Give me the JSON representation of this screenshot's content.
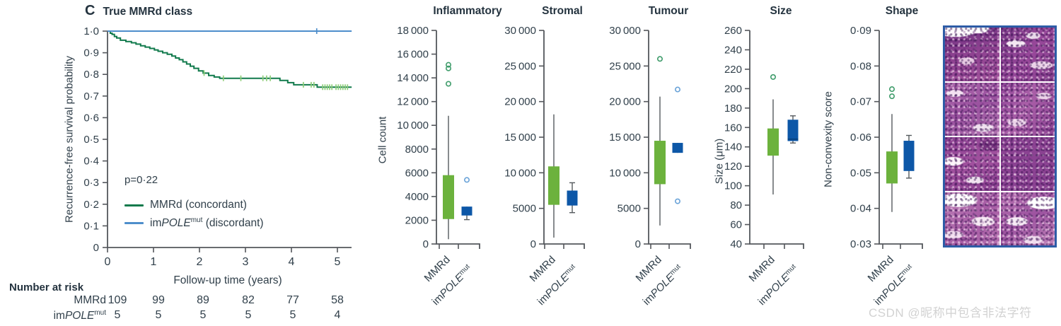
{
  "watermark": "CSDN @昵称中包含非法字符",
  "colors": {
    "green_line": "#117a4c",
    "green_censor": "#8fce7a",
    "green_box": "#6cb23d",
    "green_outlier": "#3f9c6b",
    "blue_line": "#4e8ecb",
    "blue_box": "#0d57a7",
    "blue_outlier": "#6aa3d8",
    "axis": "#54575c",
    "text": "#31404b",
    "heading": "#24333f",
    "histology_border": "#2d5ca6",
    "watermark_gray": "#d2d2d2"
  },
  "km": {
    "panel_letter": "C",
    "title": "True MMRd class",
    "ylabel": "Recurrence-free survival probability",
    "xlabel": "Follow-up time (years)",
    "p_value": "p=0·22",
    "yticks": [
      "1·0",
      "0·9",
      "0·8",
      "0·7",
      "0·6",
      "0·5",
      "0·4",
      "0·3",
      "0·2",
      "0·1",
      "0"
    ],
    "xticks": [
      "0",
      "1",
      "2",
      "3",
      "4",
      "5"
    ],
    "legend": [
      {
        "color_key": "green_line",
        "parts": [
          {
            "t": "MMRd (concordant)"
          }
        ]
      },
      {
        "color_key": "blue_line",
        "parts": [
          {
            "t": "im"
          },
          {
            "t": "POLE",
            "style": "italic"
          },
          {
            "t": "mut",
            "style": "sup"
          },
          {
            "t": " (discordant)"
          }
        ]
      }
    ]
  },
  "chart_data": [
    {
      "type": "line",
      "subtype": "kaplan-meier",
      "title": "True MMRd class",
      "xlabel": "Follow-up time (years)",
      "ylabel": "Recurrence-free survival probability",
      "xlim": [
        0,
        5.35
      ],
      "ylim": [
        0,
        1.0
      ],
      "annotation": "p=0·22",
      "series": [
        {
          "name": "MMRd (concordant)",
          "color_key": "green_line",
          "steps": [
            [
              0,
              1.0
            ],
            [
              0.06,
              0.99
            ],
            [
              0.1,
              0.985
            ],
            [
              0.15,
              0.975
            ],
            [
              0.2,
              0.968
            ],
            [
              0.28,
              0.958
            ],
            [
              0.4,
              0.952
            ],
            [
              0.52,
              0.946
            ],
            [
              0.62,
              0.94
            ],
            [
              0.72,
              0.932
            ],
            [
              0.82,
              0.926
            ],
            [
              0.92,
              0.92
            ],
            [
              1.02,
              0.913
            ],
            [
              1.1,
              0.907
            ],
            [
              1.2,
              0.9
            ],
            [
              1.3,
              0.893
            ],
            [
              1.4,
              0.885
            ],
            [
              1.48,
              0.876
            ],
            [
              1.56,
              0.868
            ],
            [
              1.64,
              0.858
            ],
            [
              1.72,
              0.848
            ],
            [
              1.8,
              0.838
            ],
            [
              1.88,
              0.828
            ],
            [
              1.98,
              0.816
            ],
            [
              2.08,
              0.806
            ],
            [
              2.2,
              0.795
            ],
            [
              2.32,
              0.788
            ],
            [
              2.44,
              0.782
            ],
            [
              3.75,
              0.772
            ],
            [
              3.92,
              0.762
            ],
            [
              4.05,
              0.752
            ],
            [
              4.56,
              0.741
            ],
            [
              5.31,
              0.741
            ]
          ],
          "censor": [
            [
              2.1,
              0.806
            ],
            [
              2.52,
              0.782
            ],
            [
              2.9,
              0.782
            ],
            [
              3.38,
              0.782
            ],
            [
              3.46,
              0.782
            ],
            [
              3.54,
              0.782
            ],
            [
              4.26,
              0.752
            ],
            [
              4.43,
              0.752
            ],
            [
              4.49,
              0.752
            ],
            [
              4.68,
              0.741
            ],
            [
              4.73,
              0.741
            ],
            [
              4.78,
              0.741
            ],
            [
              4.83,
              0.741
            ],
            [
              4.88,
              0.741
            ],
            [
              4.97,
              0.741
            ],
            [
              5.02,
              0.741
            ],
            [
              5.07,
              0.741
            ],
            [
              5.12,
              0.741
            ],
            [
              5.17,
              0.741
            ],
            [
              5.22,
              0.741
            ]
          ]
        },
        {
          "name": "imPOLEmut (discordant)",
          "color_key": "blue_line",
          "steps": [
            [
              0,
              1.0
            ],
            [
              5.31,
              1.0
            ]
          ],
          "censor": [
            [
              4.55,
              1.0
            ]
          ]
        }
      ],
      "number_at_risk": {
        "header": "Number at risk",
        "times": [
          "0",
          "1",
          "2",
          "3",
          "4",
          "5"
        ],
        "rows": [
          {
            "label_parts": [
              {
                "t": "MMRd"
              }
            ],
            "values": [
              "109",
              "99",
              "89",
              "82",
              "77",
              "58"
            ]
          },
          {
            "label_parts": [
              {
                "t": "im"
              },
              {
                "t": "POLE",
                "style": "italic"
              },
              {
                "t": "mut",
                "style": "sup"
              }
            ],
            "values": [
              "5",
              "5",
              "5",
              "5",
              "5",
              "4"
            ]
          }
        ]
      }
    },
    {
      "type": "boxplot",
      "categories": [
        {
          "parts": [
            {
              "t": "MMRd"
            }
          ]
        },
        {
          "parts": [
            {
              "t": "im"
            },
            {
              "t": "POLE",
              "style": "italic"
            },
            {
              "t": "mut",
              "style": "sup"
            }
          ]
        }
      ],
      "panels": [
        {
          "title": "Inflammatory",
          "ylabel": "Cell count",
          "ylim": [
            0,
            18000
          ],
          "ytick_values": [
            18000,
            16000,
            14000,
            12000,
            10000,
            8000,
            6000,
            4000,
            2000,
            0
          ],
          "ytick_labels": [
            "18 000",
            "16 000",
            "14 000",
            "12 000",
            "10 000",
            "8000",
            "6000",
            "4000",
            "2000",
            "0"
          ],
          "groups": [
            {
              "name": "MMRd",
              "whislo": 400,
              "q1": 2100,
              "median": null,
              "q3": 5800,
              "whishi": 10800,
              "outliers": [
                13500,
                14800,
                15100
              ]
            },
            {
              "name": "imPOLEmut",
              "whislo": 2050,
              "q1": 2400,
              "median": null,
              "q3": 3150,
              "whishi": 3150,
              "outliers": [
                5400
              ]
            }
          ]
        },
        {
          "title": "Stromal",
          "ylabel": null,
          "ylim": [
            0,
            30000
          ],
          "ytick_values": [
            30000,
            25000,
            20000,
            15000,
            10000,
            5000,
            0
          ],
          "ytick_labels": [
            "30 000",
            "25 000",
            "20 000",
            "15 000",
            "10 000",
            "5000",
            "0"
          ],
          "groups": [
            {
              "name": "MMRd",
              "whislo": 900,
              "q1": 5500,
              "median": null,
              "q3": 10900,
              "whishi": 18200,
              "outliers": []
            },
            {
              "name": "imPOLEmut",
              "whislo": 4400,
              "q1": 5400,
              "median": null,
              "q3": 7500,
              "whishi": 8600,
              "outliers": []
            }
          ]
        },
        {
          "title": "Tumour",
          "ylabel": null,
          "ylim": [
            0,
            30000
          ],
          "ytick_values": [
            30000,
            25000,
            20000,
            15000,
            10000,
            5000,
            0
          ],
          "ytick_labels": [
            "30 000",
            "25 000",
            "20 000",
            "15 000",
            "10 000",
            "5000",
            "0"
          ],
          "groups": [
            {
              "name": "MMRd",
              "whislo": 2600,
              "q1": 8400,
              "median": null,
              "q3": 14500,
              "whishi": 20700,
              "outliers": [
                26000
              ]
            },
            {
              "name": "imPOLEmut",
              "whislo": 12800,
              "q1": 12800,
              "median": null,
              "q3": 14200,
              "whishi": 14200,
              "outliers": [
                21700,
                6000
              ]
            }
          ]
        },
        {
          "title": "Size",
          "ylabel": "Size (μm)",
          "ylim": [
            40,
            260
          ],
          "ytick_values": [
            260,
            240,
            220,
            200,
            180,
            160,
            140,
            120,
            100,
            80,
            60,
            40
          ],
          "ytick_labels": [
            "260",
            "240",
            "220",
            "200",
            "180",
            "160",
            "140",
            "120",
            "100",
            "80",
            "60",
            "40"
          ],
          "groups": [
            {
              "name": "MMRd",
              "whislo": 91,
              "q1": 131,
              "median": null,
              "q3": 159,
              "whishi": 189,
              "outliers": [
                212
              ]
            },
            {
              "name": "imPOLEmut",
              "whislo": 144,
              "q1": 146,
              "median": 148,
              "q3": 168,
              "whishi": 172,
              "outliers": []
            }
          ]
        },
        {
          "title": "Shape",
          "ylabel": "Non-convexity score",
          "ylim": [
            0.03,
            0.09
          ],
          "ytick_values": [
            0.09,
            0.08,
            0.07,
            0.06,
            0.05,
            0.04,
            0.03
          ],
          "ytick_labels": [
            "0·09",
            "0·08",
            "0·07",
            "0·06",
            "0·05",
            "0·04",
            "0·03"
          ],
          "groups": [
            {
              "name": "MMRd",
              "whislo": 0.039,
              "q1": 0.047,
              "median": null,
              "q3": 0.056,
              "whishi": 0.0665,
              "outliers": [
                0.0715,
                0.0735
              ]
            },
            {
              "name": "imPOLEmut",
              "whislo": 0.0485,
              "q1": 0.0505,
              "median": null,
              "q3": 0.059,
              "whishi": 0.0605,
              "outliers": []
            }
          ]
        }
      ]
    },
    {
      "type": "image",
      "description": "H&E histology micrographs, 2 columns × 4 rows grid with blue border"
    }
  ]
}
